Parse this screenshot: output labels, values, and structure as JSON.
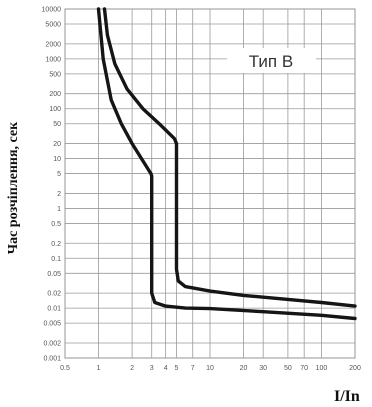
{
  "chart_data": {
    "type": "line",
    "title": "",
    "xlabel": "I/In",
    "ylabel": "Час розчіплення, сек",
    "legend_label": "Тип В",
    "x_scale": "log",
    "y_scale": "log",
    "xlim": [
      0.5,
      200
    ],
    "ylim": [
      0.001,
      10000
    ],
    "grid": true,
    "x_ticks": [
      {
        "v": 0.5,
        "label": "0.5"
      },
      {
        "v": 1,
        "label": "1"
      },
      {
        "v": 2,
        "label": "2"
      },
      {
        "v": 3,
        "label": "3"
      },
      {
        "v": 4,
        "label": "4"
      },
      {
        "v": 5,
        "label": "5"
      },
      {
        "v": 7,
        "label": "7"
      },
      {
        "v": 10,
        "label": "10"
      },
      {
        "v": 20,
        "label": "20"
      },
      {
        "v": 30,
        "label": "30"
      },
      {
        "v": 50,
        "label": "50"
      },
      {
        "v": 70,
        "label": "70"
      },
      {
        "v": 100,
        "label": "100"
      },
      {
        "v": 200,
        "label": "200"
      }
    ],
    "y_ticks": [
      {
        "v": 10000,
        "label": "10000"
      },
      {
        "v": 5000,
        "label": "5000"
      },
      {
        "v": 2000,
        "label": "2000"
      },
      {
        "v": 1000,
        "label": "1000"
      },
      {
        "v": 500,
        "label": "500"
      },
      {
        "v": 200,
        "label": "200"
      },
      {
        "v": 100,
        "label": "100"
      },
      {
        "v": 50,
        "label": "50"
      },
      {
        "v": 20,
        "label": "20"
      },
      {
        "v": 10,
        "label": "10"
      },
      {
        "v": 5,
        "label": "5"
      },
      {
        "v": 2,
        "label": "2"
      },
      {
        "v": 1,
        "label": "1"
      },
      {
        "v": 0.5,
        "label": "0.5"
      },
      {
        "v": 0.2,
        "label": "0.2"
      },
      {
        "v": 0.1,
        "label": "0.1"
      },
      {
        "v": 0.05,
        "label": "0.05"
      },
      {
        "v": 0.02,
        "label": "0.02"
      },
      {
        "v": 0.01,
        "label": "0.01"
      },
      {
        "v": 0.005,
        "label": "0.005"
      },
      {
        "v": 0.002,
        "label": "0.002"
      },
      {
        "v": 0.001,
        "label": "0.001"
      }
    ],
    "series": [
      {
        "points": [
          [
            1.0,
            10000
          ],
          [
            1.1,
            1000
          ],
          [
            1.3,
            150
          ],
          [
            1.6,
            50
          ],
          [
            2.0,
            20
          ],
          [
            2.5,
            9
          ],
          [
            2.95,
            5
          ],
          [
            3.0,
            4.5
          ],
          [
            3.0,
            0.02
          ],
          [
            3.2,
            0.013
          ],
          [
            4.0,
            0.011
          ],
          [
            6.0,
            0.01
          ],
          [
            10,
            0.0098
          ],
          [
            30,
            0.0085
          ],
          [
            100,
            0.0072
          ],
          [
            200,
            0.0062
          ]
        ]
      },
      {
        "points": [
          [
            1.13,
            10000
          ],
          [
            1.2,
            3000
          ],
          [
            1.4,
            800
          ],
          [
            1.8,
            250
          ],
          [
            2.5,
            100
          ],
          [
            3.5,
            50
          ],
          [
            4.8,
            25
          ],
          [
            5.0,
            20
          ],
          [
            5.0,
            0.06
          ],
          [
            5.2,
            0.035
          ],
          [
            6.0,
            0.027
          ],
          [
            10,
            0.022
          ],
          [
            20,
            0.018
          ],
          [
            50,
            0.015
          ],
          [
            100,
            0.013
          ],
          [
            200,
            0.011
          ]
        ]
      }
    ]
  }
}
